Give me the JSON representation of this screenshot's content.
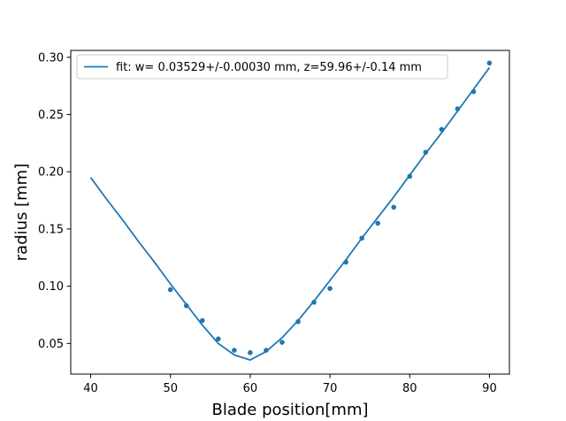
{
  "chart_data": {
    "type": "scatter",
    "xlabel": "Blade position[mm]",
    "ylabel": "radius [mm]",
    "xlim": [
      37.5,
      92.5
    ],
    "ylim": [
      0.0232,
      0.306
    ],
    "x_ticks": [
      40,
      50,
      60,
      70,
      80,
      90
    ],
    "y_ticks": [
      0.05,
      0.1,
      0.15,
      0.2,
      0.25,
      0.3
    ],
    "x_tick_labels": [
      "40",
      "50",
      "60",
      "70",
      "80",
      "90"
    ],
    "y_tick_labels": [
      "0.05",
      "0.10",
      "0.15",
      "0.20",
      "0.25",
      "0.30"
    ],
    "grid": false,
    "legend_position": "top-left",
    "color": "#1f77b4",
    "series": [
      {
        "name": "fit: w= 0.03529+/-0.00030 mm, z=59.96+/-0.14 mm",
        "kind": "line",
        "x": [
          40,
          42,
          44,
          46,
          48,
          50,
          52,
          54,
          56,
          58,
          60,
          62,
          64,
          66,
          68,
          70,
          72,
          74,
          76,
          78,
          80,
          82,
          84,
          86,
          88,
          90
        ],
        "y": [
          0.195,
          0.176,
          0.158,
          0.139,
          0.121,
          0.102,
          0.084,
          0.066,
          0.05,
          0.04,
          0.0355,
          0.043,
          0.055,
          0.07,
          0.087,
          0.105,
          0.123,
          0.142,
          0.16,
          0.178,
          0.197,
          0.216,
          0.234,
          0.253,
          0.272,
          0.291
        ]
      },
      {
        "kind": "points",
        "x": [
          50,
          52,
          54,
          56,
          58,
          60,
          62,
          64,
          66,
          68,
          70,
          72,
          74,
          76,
          78,
          80,
          82,
          84,
          86,
          88,
          90
        ],
        "y": [
          0.097,
          0.083,
          0.07,
          0.054,
          0.044,
          0.042,
          0.044,
          0.051,
          0.069,
          0.086,
          0.098,
          0.121,
          0.142,
          0.155,
          0.169,
          0.196,
          0.217,
          0.237,
          0.255,
          0.27,
          0.295
        ]
      }
    ]
  }
}
